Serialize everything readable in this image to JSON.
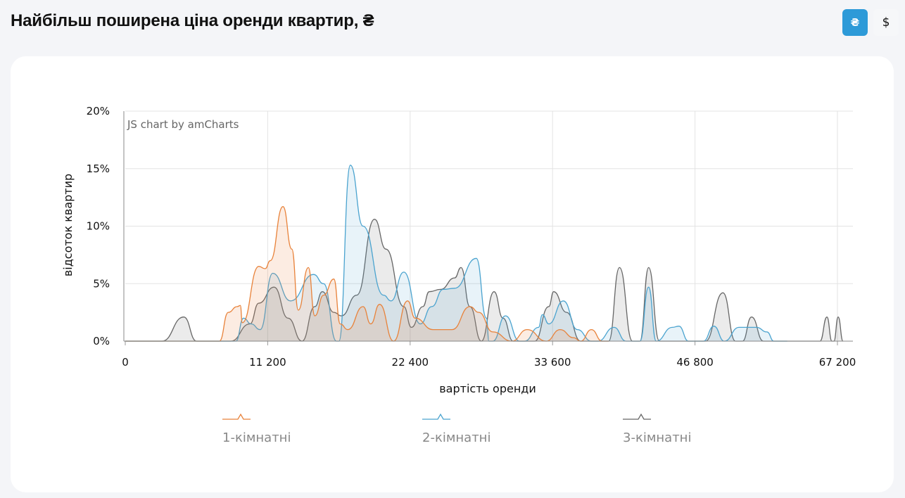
{
  "header": {
    "title": "Найбільш поширена ціна оренди квартир, ₴",
    "currency_buttons": [
      {
        "label": "₴",
        "active": true
      },
      {
        "label": "$",
        "active": false
      }
    ]
  },
  "chart_data": {
    "type": "area",
    "credit": "JS chart by amCharts",
    "xlabel": "вартість оренди",
    "ylabel": "відсоток квартир",
    "x_ticks": [
      0,
      11200,
      22400,
      33600,
      46800,
      67200
    ],
    "x_tick_labels": [
      "0",
      "11 200",
      "22 400",
      "33 600",
      "46 800",
      "67 200"
    ],
    "y_ticks": [
      0,
      5,
      10,
      15,
      20
    ],
    "y_tick_labels": [
      "0%",
      "5%",
      "10%",
      "15%",
      "20%"
    ],
    "ylim": [
      0,
      20
    ],
    "xlim": [
      0,
      68500
    ],
    "grid": true,
    "legend_position": "bottom",
    "series": [
      {
        "name": "1-кімнатні",
        "color": "#e8823a",
        "points": [
          [
            0,
            0
          ],
          [
            7400,
            0
          ],
          [
            8100,
            2.5
          ],
          [
            8800,
            3.0
          ],
          [
            9050,
            3.1
          ],
          [
            9200,
            1.6
          ],
          [
            10500,
            6.5
          ],
          [
            11000,
            6.3
          ],
          [
            11400,
            7
          ],
          [
            12400,
            11.7
          ],
          [
            13100,
            8
          ],
          [
            13600,
            2.7
          ],
          [
            14400,
            6.4
          ],
          [
            14900,
            2.2
          ],
          [
            15600,
            4
          ],
          [
            16400,
            5.4
          ],
          [
            16900,
            1.5
          ],
          [
            17500,
            1.0
          ],
          [
            18700,
            3.0
          ],
          [
            19300,
            1.5
          ],
          [
            20000,
            3.2
          ],
          [
            21100,
            0
          ],
          [
            22200,
            3.5
          ],
          [
            22800,
            2
          ],
          [
            24200,
            1
          ],
          [
            25700,
            1
          ],
          [
            27100,
            3
          ],
          [
            27800,
            2.5
          ],
          [
            28900,
            0.8
          ],
          [
            30400,
            0
          ],
          [
            31600,
            1
          ],
          [
            33100,
            0
          ],
          [
            34300,
            1
          ],
          [
            35550,
            0.3
          ],
          [
            36200,
            0
          ],
          [
            37200,
            1
          ],
          [
            38200,
            0
          ],
          [
            38800,
            0
          ]
        ]
      },
      {
        "name": "2-кімнатні",
        "color": "#4aa3cf",
        "points": [
          [
            0,
            0
          ],
          [
            8700,
            0
          ],
          [
            9300,
            2
          ],
          [
            9900,
            1.5
          ],
          [
            10600,
            1
          ],
          [
            11600,
            5.9
          ],
          [
            13000,
            3.5
          ],
          [
            14800,
            5.8
          ],
          [
            15600,
            5
          ],
          [
            16600,
            0
          ],
          [
            16800,
            0
          ],
          [
            17700,
            15.3
          ],
          [
            18700,
            10
          ],
          [
            20300,
            4
          ],
          [
            20900,
            3.5
          ],
          [
            21900,
            6
          ],
          [
            23200,
            1.5
          ],
          [
            24100,
            3
          ],
          [
            25000,
            4.5
          ],
          [
            25900,
            4.6
          ],
          [
            27600,
            7.2
          ],
          [
            28400,
            2
          ],
          [
            28600,
            0
          ],
          [
            28900,
            0
          ],
          [
            29900,
            2.2
          ],
          [
            31000,
            0
          ],
          [
            31400,
            0
          ],
          [
            32500,
            1.2
          ],
          [
            32800,
            2.3
          ],
          [
            33300,
            1.5
          ],
          [
            34600,
            3.5
          ],
          [
            35900,
            1
          ],
          [
            37200,
            0
          ],
          [
            37800,
            0
          ],
          [
            39300,
            1.2
          ],
          [
            40400,
            0
          ],
          [
            41700,
            0
          ],
          [
            42500,
            4.7
          ],
          [
            43200,
            0
          ],
          [
            44700,
            1.2
          ],
          [
            45300,
            1.3
          ],
          [
            46200,
            0
          ],
          [
            48000,
            0
          ],
          [
            49500,
            1.3
          ],
          [
            51000,
            0
          ],
          [
            53100,
            1.2
          ],
          [
            55600,
            1.2
          ],
          [
            57100,
            0.8
          ],
          [
            58100,
            0
          ],
          [
            60000,
            0
          ]
        ]
      },
      {
        "name": "3-кімнатні",
        "color": "#666666",
        "points": [
          [
            0,
            0
          ],
          [
            2900,
            0
          ],
          [
            4600,
            2.1
          ],
          [
            5600,
            0
          ],
          [
            8300,
            0
          ],
          [
            9800,
            1.5
          ],
          [
            10500,
            3.3
          ],
          [
            11700,
            4.7
          ],
          [
            12800,
            2
          ],
          [
            13900,
            0
          ],
          [
            14900,
            3
          ],
          [
            15500,
            4.3
          ],
          [
            16400,
            2.5
          ],
          [
            17000,
            2.2
          ],
          [
            18200,
            4
          ],
          [
            19600,
            10.6
          ],
          [
            20500,
            8
          ],
          [
            21900,
            3
          ],
          [
            22500,
            1.2
          ],
          [
            23400,
            3
          ],
          [
            23900,
            4.3
          ],
          [
            24800,
            4.5
          ],
          [
            25900,
            5.5
          ],
          [
            26400,
            6.4
          ],
          [
            27100,
            3
          ],
          [
            28000,
            0
          ],
          [
            29000,
            4.3
          ],
          [
            29700,
            2
          ],
          [
            30500,
            0
          ],
          [
            32200,
            0
          ],
          [
            33300,
            3
          ],
          [
            33700,
            4.3
          ],
          [
            34900,
            2.5
          ],
          [
            36200,
            0
          ],
          [
            38800,
            0
          ],
          [
            39800,
            6.4
          ],
          [
            41000,
            0
          ],
          [
            41700,
            0
          ],
          [
            42500,
            6.4
          ],
          [
            43500,
            0
          ],
          [
            48300,
            0
          ],
          [
            50800,
            4.2
          ],
          [
            52600,
            0
          ],
          [
            53600,
            0
          ],
          [
            54900,
            2.1
          ],
          [
            56600,
            0
          ],
          [
            64700,
            0
          ],
          [
            65700,
            2.1
          ],
          [
            66400,
            0
          ],
          [
            66700,
            0
          ],
          [
            67300,
            2.1
          ],
          [
            68000,
            0
          ]
        ]
      }
    ]
  }
}
